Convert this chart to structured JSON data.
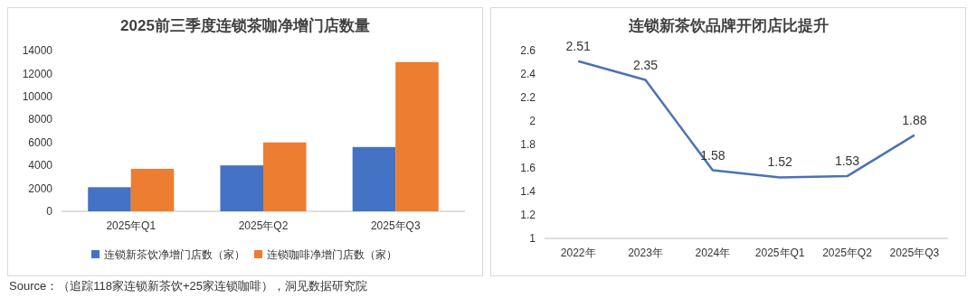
{
  "chart_data": [
    {
      "type": "bar",
      "title": "2025前三季度连锁茶咖净增门店数量",
      "categories": [
        "2025年Q1",
        "2025年Q2",
        "2025年Q3"
      ],
      "series": [
        {
          "name": "连锁新茶饮净增门店数（家）",
          "color": "#4472c4",
          "values": [
            2100,
            4000,
            5600
          ]
        },
        {
          "name": "连锁咖啡净增门店数（家）",
          "color": "#ed7d31",
          "values": [
            3700,
            6000,
            13000
          ]
        }
      ],
      "ylim": [
        0,
        14000
      ],
      "yticks": [
        0,
        2000,
        4000,
        6000,
        8000,
        10000,
        12000,
        14000
      ],
      "grid": false,
      "legend": "bottom",
      "annotations": [
        "Source：（追踪118家连锁新茶饮+25家连锁咖啡），洞见数据研究院"
      ]
    },
    {
      "type": "line",
      "title": "连锁新茶饮品牌开闭店比提升",
      "categories": [
        "2022年",
        "2023年",
        "2024年",
        "2025年Q1",
        "2025年Q2",
        "2025年Q3"
      ],
      "series": [
        {
          "color": "#4a72b8",
          "values": [
            2.51,
            2.35,
            1.58,
            1.52,
            1.53,
            1.88
          ]
        }
      ],
      "ylim": [
        1,
        2.6
      ],
      "yticks": [
        1,
        1.2,
        1.4,
        1.6,
        1.8,
        2,
        2.2,
        2.4,
        2.6
      ],
      "grid": false,
      "data_labels": true,
      "marker": "none",
      "line_style": "solid"
    }
  ]
}
